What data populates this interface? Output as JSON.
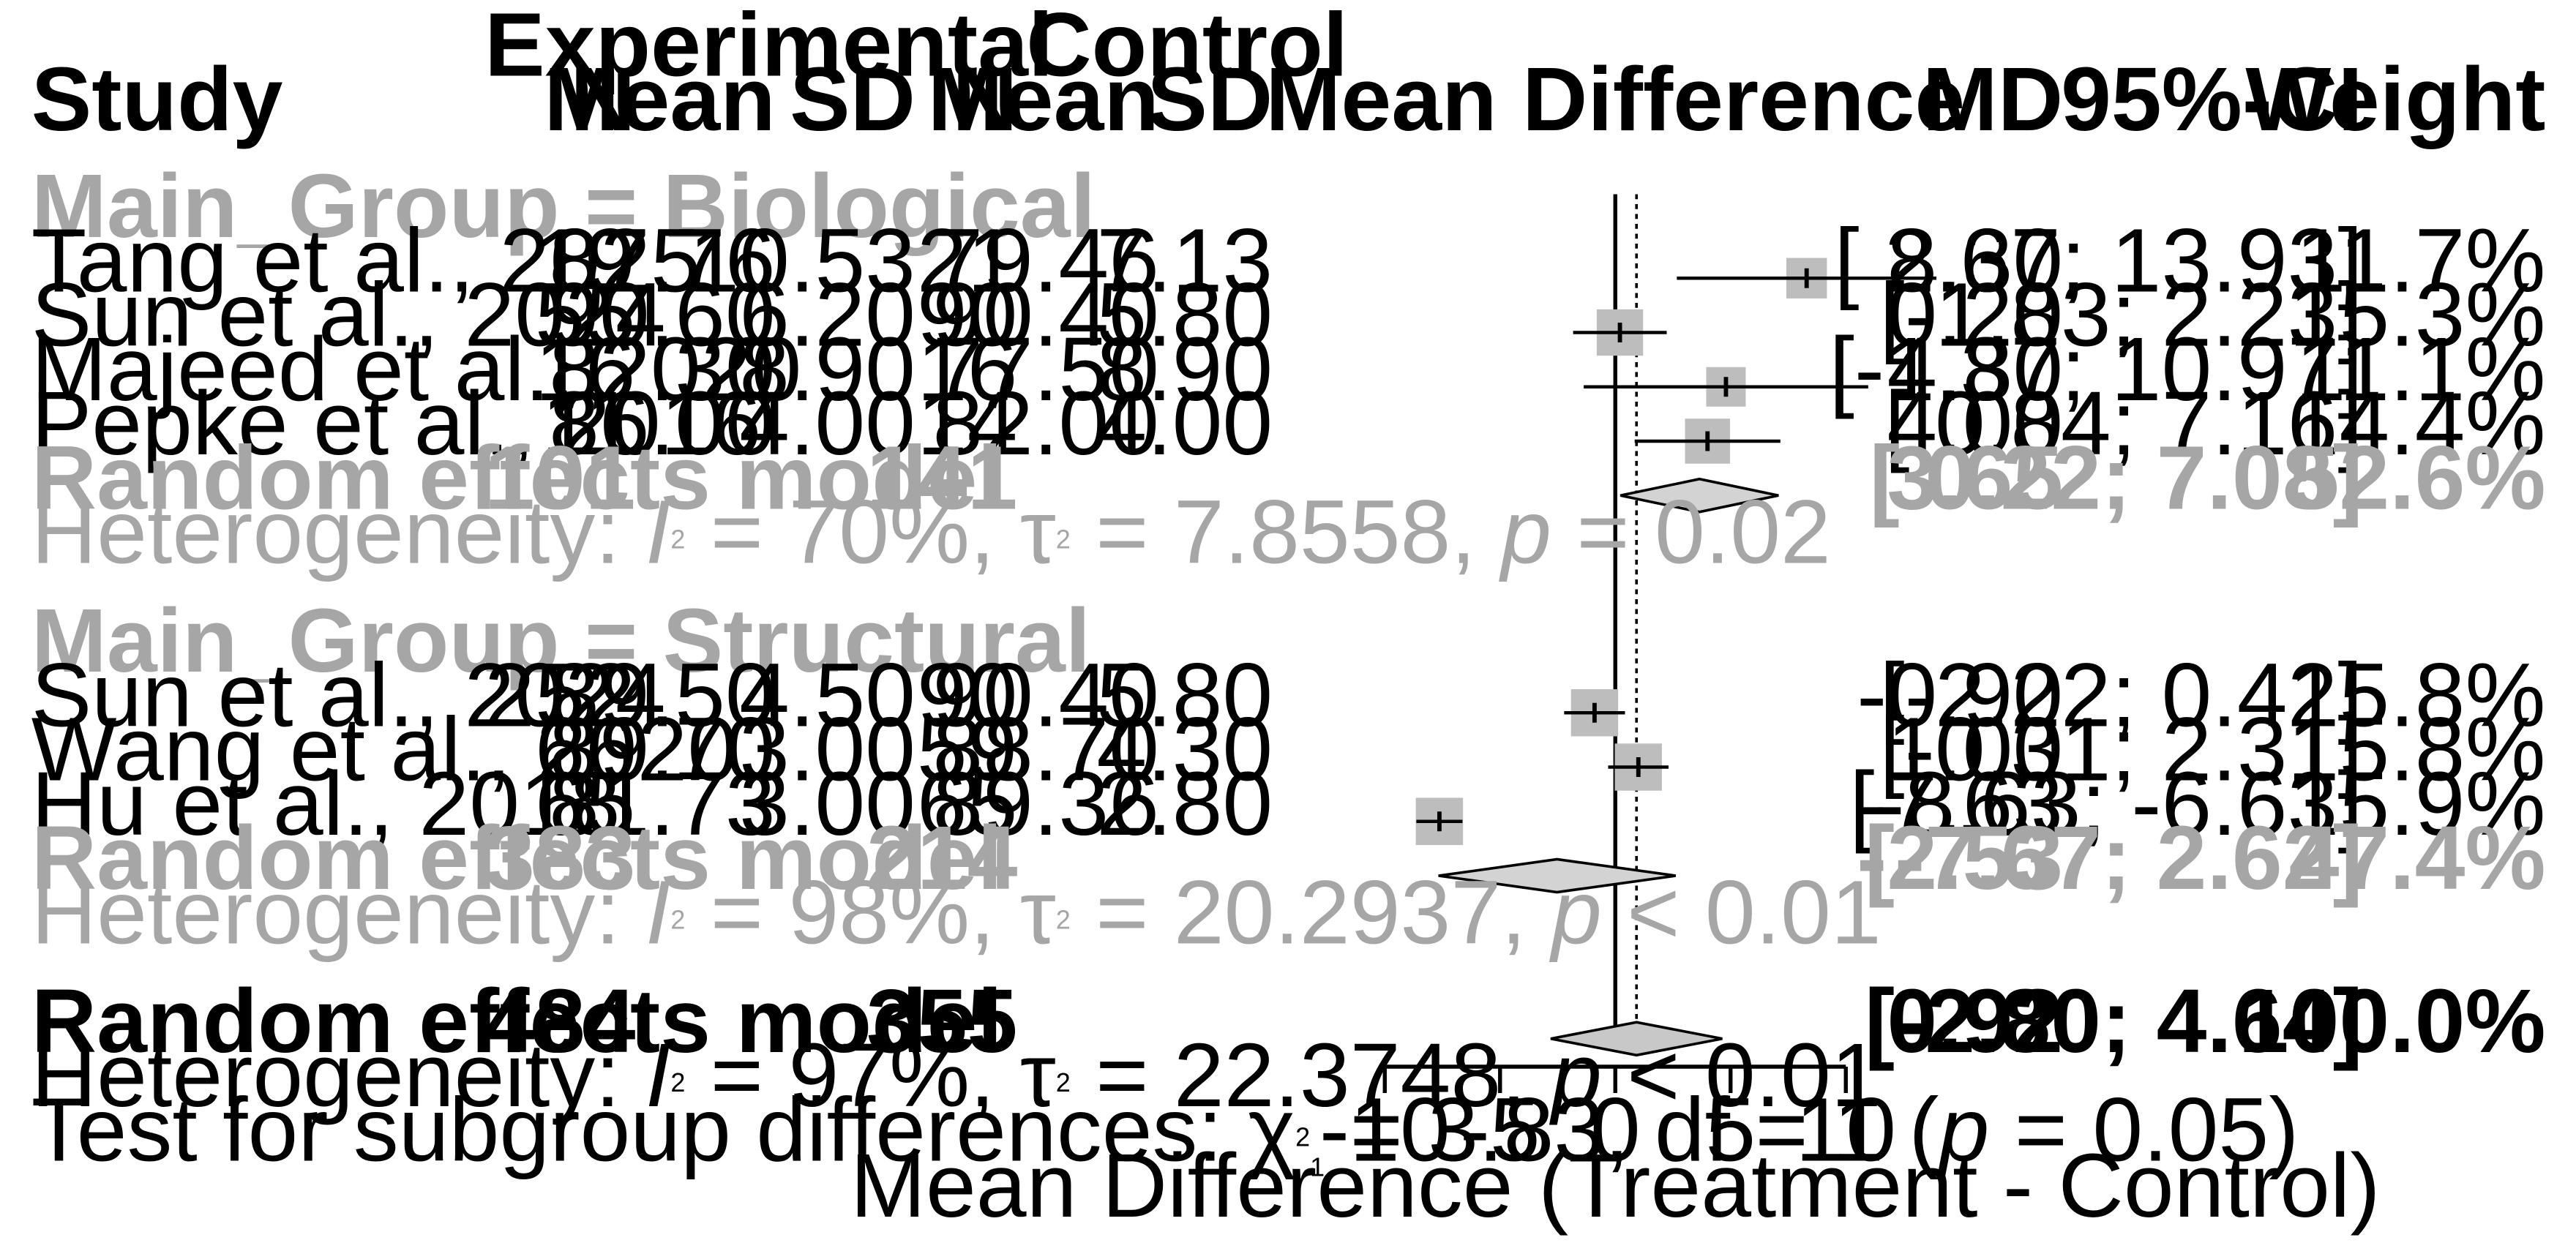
{
  "chart_data": {
    "type": "forest",
    "title": "",
    "xlabel": "Mean Difference (Treatment - Control)",
    "xlim": [
      -10,
      10
    ],
    "xticks": [
      -10,
      -5,
      0,
      5,
      10
    ],
    "xtick_labels": [
      "-10",
      "-5",
      "0",
      "5",
      "10"
    ],
    "null_line": 0,
    "overall_line": 0.92,
    "headers": {
      "experimental": "Experimental",
      "control": "Control",
      "study": "Study",
      "n": "N",
      "mean": "Mean",
      "sd": "SD",
      "n2": "N",
      "mean2": "Mean",
      "sd2": "SD",
      "plot": "Mean Difference",
      "md": "MD",
      "ci": "95%-CI",
      "weight": "Weight"
    },
    "groups": [
      {
        "label": "Main_Group = Biological",
        "studies": [
          {
            "name": "Tang et al., 2025",
            "n_e": "19",
            "mean_e": "87.76",
            "sd_e": "10.53",
            "n_c": "21",
            "mean_c": "79.46",
            "sd_c": "7.13",
            "md": 8.3,
            "lo": 2.67,
            "hi": 13.93,
            "weight": 11.7,
            "md_text": "8.30",
            "ci_text": "[ 2.67; 13.93]",
            "weight_text": "11.7%"
          },
          {
            "name": "Sun et al., 2024",
            "n_e": "55",
            "mean_e": "90.60",
            "sd_e": "6.20",
            "n_c": "90",
            "mean_c": "90.40",
            "sd_c": "5.80",
            "md": 0.2,
            "lo": -1.83,
            "hi": 2.23,
            "weight": 15.3,
            "md_text": "0.20",
            "ci_text": "[-1.83;  2.23]",
            "weight_text": "15.3%"
          },
          {
            "name": "Majeed et al., 2020",
            "n_e": "16",
            "mean_e": "82.30",
            "sd_e": "8.90",
            "n_c": "16",
            "mean_c": "77.50",
            "sd_c": "8.90",
            "md": 4.8,
            "lo": -1.37,
            "hi": 10.97,
            "weight": 11.1,
            "md_text": "4.80",
            "ci_text": "[-1.37; 10.97]",
            "weight_text": "11.1%"
          },
          {
            "name": "Pepke et al., 2016",
            "n_e": "11",
            "mean_e": "86.00",
            "sd_e": "4.00",
            "n_c": "14",
            "mean_c": "82.00",
            "sd_c": "4.00",
            "md": 4.0,
            "lo": 0.84,
            "hi": 7.16,
            "weight": 14.4,
            "md_text": "4.00",
            "ci_text": "[ 0.84;  7.16]",
            "weight_text": "14.4%"
          }
        ],
        "summary": {
          "label": "Random effects model",
          "n_e": "101",
          "n_c": "141",
          "md": 3.65,
          "lo": 0.22,
          "hi": 7.08,
          "md_text": "3.65",
          "ci_text": "[ 0.22;  7.08]",
          "weight_text": "52.6%"
        },
        "heterogeneity": {
          "prefix": "Heterogeneity: ",
          "i2": "= 70%, ",
          "tau2": "= 7.8558, ",
          "p": "= 0.02"
        }
      },
      {
        "label": "Main_Group = Structural",
        "studies": [
          {
            "name": "Sun et al., 2024",
            "n_e": "252",
            "mean_e": "89.50",
            "sd_e": "4.50",
            "n_c": "90",
            "mean_c": "90.40",
            "sd_c": "5.80",
            "md": -0.9,
            "lo": -2.22,
            "hi": 0.42,
            "weight": 15.8,
            "md_text": "-0.90",
            "ci_text": "[-2.22;  0.42]",
            "weight_text": "15.8%"
          },
          {
            "name": "Wang et al., 2020",
            "n_e": "66",
            "mean_e": "89.70",
            "sd_e": "3.00",
            "n_c": "59",
            "mean_c": "88.70",
            "sd_c": "4.30",
            "md": 1.0,
            "lo": -0.31,
            "hi": 2.31,
            "weight": 15.8,
            "md_text": "1.00",
            "ci_text": "[-0.31;  2.31]",
            "weight_text": "15.8%"
          },
          {
            "name": "Hu  et al., 2018",
            "n_e": "65",
            "mean_e": "81.73",
            "sd_e": "3.00",
            "n_c": "65",
            "mean_c": "89.36",
            "sd_c": "2.80",
            "md": -7.63,
            "lo": -8.63,
            "hi": -6.63,
            "weight": 15.9,
            "md_text": "-7.63",
            "ci_text": "[-8.63; -6.63]",
            "weight_text": "15.9%"
          }
        ],
        "summary": {
          "label": "Random effects model",
          "n_e": "383",
          "n_c": "214",
          "md": -2.53,
          "lo": -7.67,
          "hi": 2.62,
          "md_text": "-2.53",
          "ci_text": "[-7.67;  2.62]",
          "weight_text": "47.4%"
        },
        "heterogeneity": {
          "prefix": "Heterogeneity: ",
          "i2": "= 98%, ",
          "tau2": "= 20.2937, ",
          "p": "< 0.01"
        }
      }
    ],
    "overall": {
      "label": "Random effects model",
      "n_e": "484",
      "n_c": "355",
      "md": 0.92,
      "lo": -2.8,
      "hi": 4.64,
      "md_text": "0.92",
      "ci_text": "[-2.80;  4.64]",
      "weight_text": "100.0%",
      "heterogeneity": {
        "prefix": "Heterogeneity: ",
        "i2": "= 97%, ",
        "tau2": "= 22.3748, ",
        "p": "< 0.01"
      },
      "subgroup_test": {
        "prefix": "Test for subgroup differences: ",
        "chi": "= 3.83, df = 1 (",
        "p": "= 0.05)"
      }
    },
    "symbols": {
      "i": "I",
      "tau": "τ",
      "chi": "χ",
      "p": "p",
      "sq": "2",
      "sub1": "1"
    }
  }
}
